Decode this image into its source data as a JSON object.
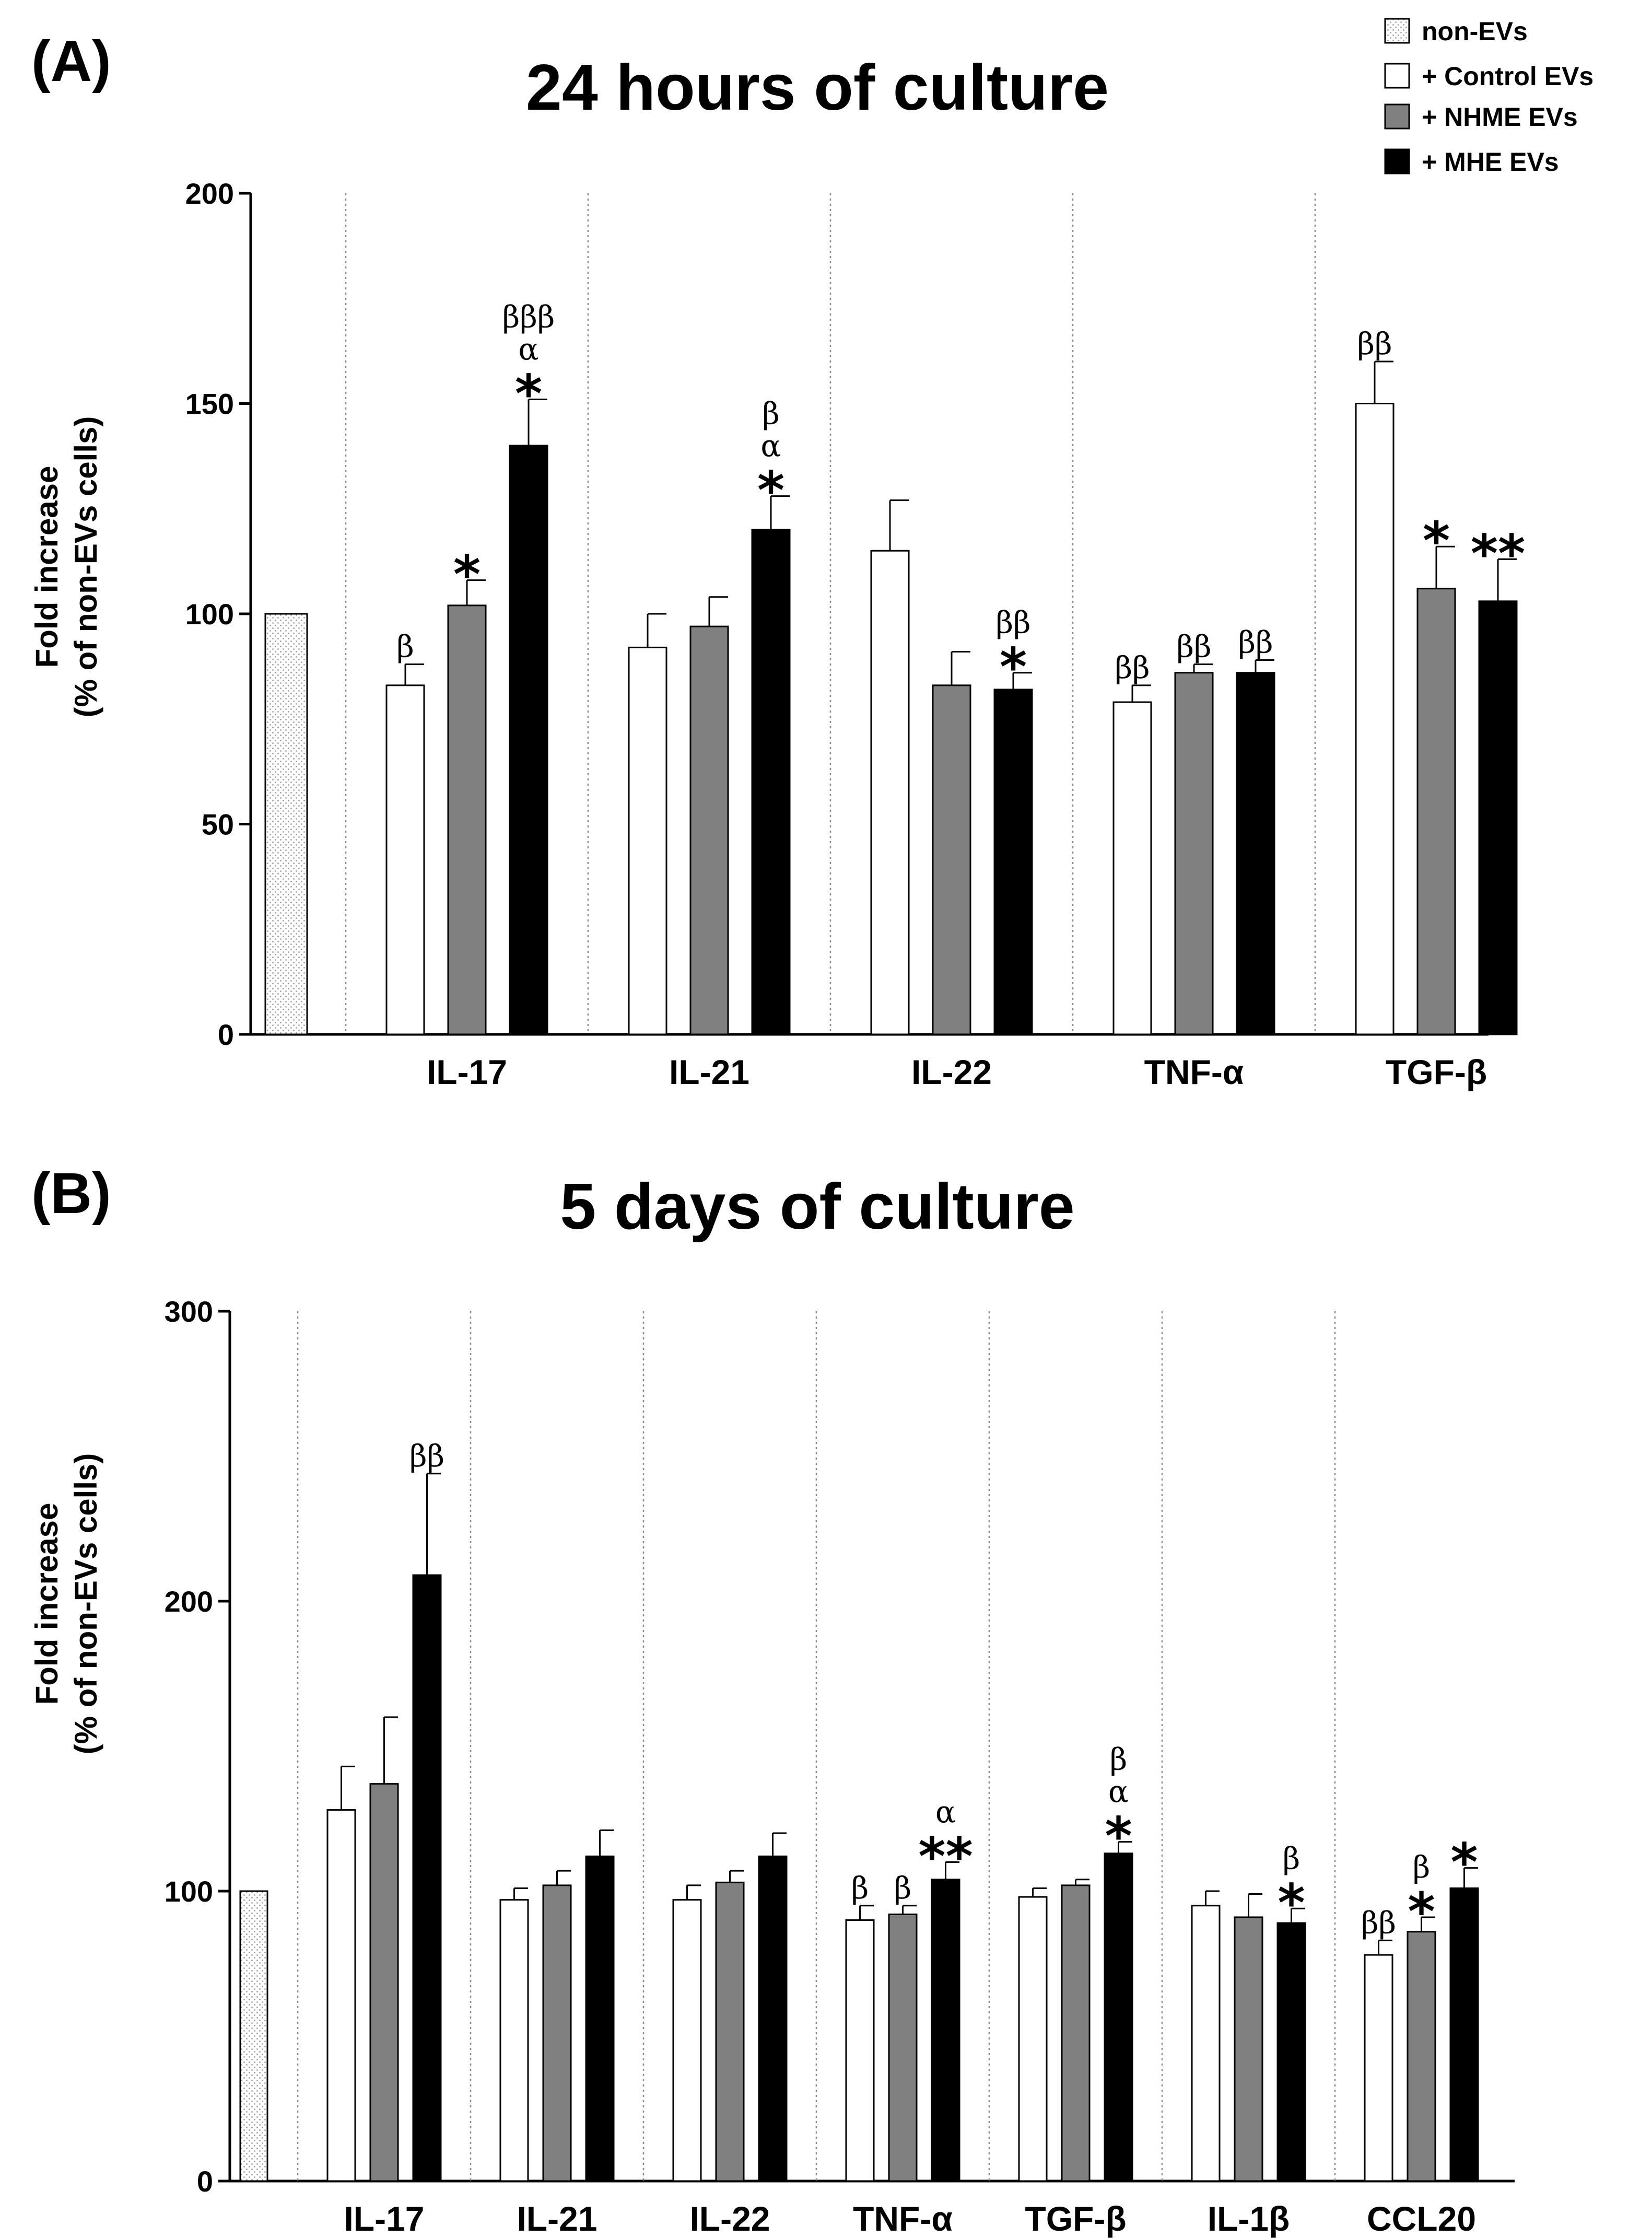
{
  "colors": {
    "control": "#ffffff",
    "nhme": "#808080",
    "mhe": "#000000",
    "noEVsDots": "#9a9a9a",
    "axis": "#000000",
    "divider": "#888888"
  },
  "legend": [
    {
      "key": "nonEVs",
      "label": "non-EVs"
    },
    {
      "key": "control",
      "label": "+ Control EVs"
    },
    {
      "key": "nhme",
      "label": "+ NHME EVs"
    },
    {
      "key": "mhe",
      "label": "+ MHE EVs"
    }
  ],
  "chart_data": [
    {
      "panel_label": "(A)",
      "type": "bar",
      "title": "24 hours of culture",
      "ylabel_line1": "Fold increase",
      "ylabel_line2": "(% of non-EVs cells)",
      "ylim": [
        0,
        200
      ],
      "yticks": [
        0,
        50,
        100,
        150,
        200
      ],
      "baseline_value": 100,
      "categories": [
        "IL-17",
        "IL-21",
        "IL-22",
        "TNF-α",
        "TGF-β"
      ],
      "series": [
        {
          "name": "+ Control EVs",
          "key": "control",
          "values": [
            83,
            92,
            115,
            79,
            150
          ],
          "errors": [
            5,
            8,
            12,
            4,
            10
          ],
          "annotations": [
            [
              "β"
            ],
            [],
            [],
            [
              "ββ"
            ],
            [
              "ββ"
            ]
          ]
        },
        {
          "name": "+ NHME EVs",
          "key": "nhme",
          "values": [
            102,
            97,
            83,
            86,
            106
          ],
          "errors": [
            6,
            7,
            8,
            2,
            10
          ],
          "annotations": [
            [
              "*"
            ],
            [],
            [],
            [
              "ββ"
            ],
            [
              "*"
            ]
          ]
        },
        {
          "name": "+ MHE EVs",
          "key": "mhe",
          "values": [
            140,
            120,
            82,
            86,
            103
          ],
          "errors": [
            11,
            8,
            4,
            3,
            10
          ],
          "annotations": [
            [
              "βββ",
              "α",
              "*"
            ],
            [
              "β",
              "α",
              "*"
            ],
            [
              "ββ",
              "*"
            ],
            [
              "ββ"
            ],
            [
              "**"
            ]
          ]
        }
      ]
    },
    {
      "panel_label": "(B)",
      "type": "bar",
      "title": "5 days of culture",
      "ylabel_line1": "Fold increase",
      "ylabel_line2": "(% of non-EVs cells)",
      "ylim": [
        0,
        300
      ],
      "yticks": [
        0,
        100,
        200,
        300
      ],
      "baseline_value": 100,
      "categories": [
        "IL-17",
        "IL-21",
        "IL-22",
        "TNF-α",
        "TGF-β",
        "IL-1β",
        "CCL20"
      ],
      "series": [
        {
          "name": "+ Control EVs",
          "key": "control",
          "values": [
            128,
            97,
            97,
            90,
            98,
            95,
            78
          ],
          "errors": [
            15,
            4,
            5,
            5,
            3,
            5,
            5
          ],
          "annotations": [
            [],
            [],
            [],
            [
              "β"
            ],
            [],
            [],
            [
              "ββ"
            ]
          ]
        },
        {
          "name": "+ NHME EVs",
          "key": "nhme",
          "values": [
            137,
            102,
            103,
            92,
            102,
            91,
            86
          ],
          "errors": [
            23,
            5,
            4,
            3,
            2,
            8,
            5
          ],
          "annotations": [
            [],
            [],
            [],
            [
              "β"
            ],
            [],
            [],
            [
              "β",
              "*"
            ]
          ]
        },
        {
          "name": "+ MHE EVs",
          "key": "mhe",
          "values": [
            209,
            112,
            112,
            104,
            113,
            89,
            101
          ],
          "errors": [
            35,
            9,
            8,
            6,
            4,
            5,
            7
          ],
          "annotations": [
            [
              "ββ"
            ],
            [],
            [],
            [
              "α",
              "**"
            ],
            [
              "β",
              "α",
              "*"
            ],
            [
              "β",
              "*"
            ],
            [
              "*"
            ]
          ]
        }
      ]
    }
  ]
}
